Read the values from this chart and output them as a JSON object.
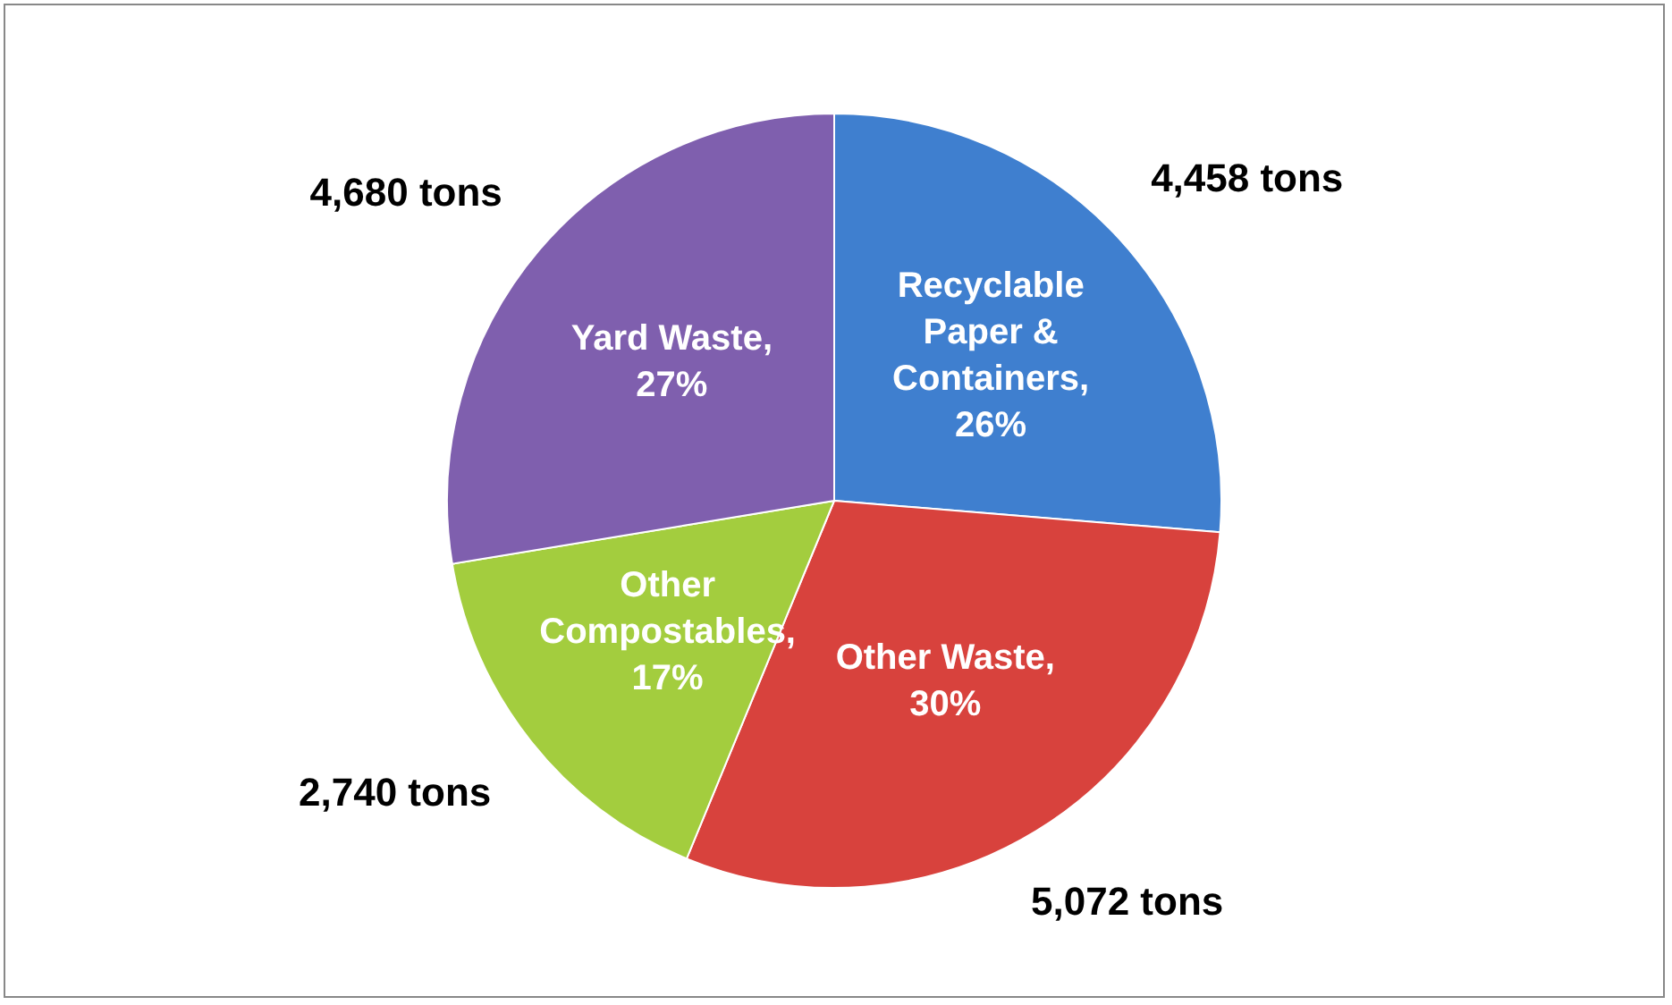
{
  "chart_data": {
    "type": "pie",
    "categories": [
      "Recyclable Paper & Containers, 26%",
      "Other Waste, 30%",
      "Other Compostables, 17%",
      "Yard Waste, 27%"
    ],
    "values": [
      4458,
      5072,
      2740,
      4680
    ],
    "colors": [
      "#3f7fcf",
      "#d8423d",
      "#a3cd3e",
      "#7f5fae"
    ],
    "value_labels": [
      "4,458 tons",
      "5,072 tons",
      "2,740 tons",
      "4,680 tons"
    ],
    "legend": false
  }
}
